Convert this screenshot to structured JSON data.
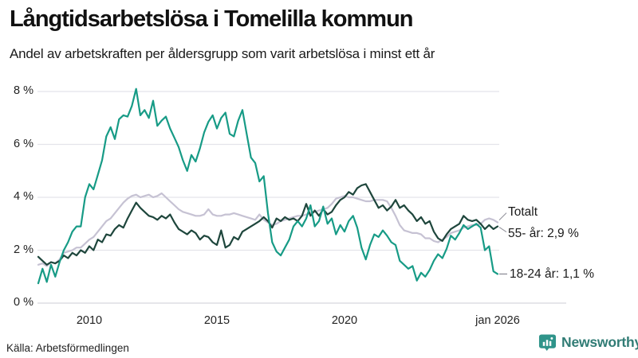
{
  "header": {
    "title": "Långtidsarbetslösa i Tomelilla kommun",
    "subtitle": "Andel av arbetskraften per åldersgrupp som varit arbetslösa i minst ett år"
  },
  "footer": {
    "source": "Källa: Arbetsförmedlingen",
    "brand": "Newsworthy",
    "brand_color": "#317c75",
    "brand_icon": "bar-chart-speech-bubble-icon",
    "brand_icon_color": "#2f948a"
  },
  "chart_data": {
    "type": "line",
    "title": "Långtidsarbetslösa i Tomelilla kommun",
    "subtitle": "Andel av arbetskraften per åldersgrupp som varit arbetslösa i minst ett år",
    "grid": "horizontal",
    "x_start_year": 2008.0,
    "x_step_years": 0.1666667,
    "x_axis": {
      "ticks": [
        {
          "label": "2010",
          "year": 2010
        },
        {
          "label": "2015",
          "year": 2015
        },
        {
          "label": "2020",
          "year": 2020
        },
        {
          "label": "jan 2026",
          "year": 2026
        }
      ]
    },
    "y_axis": {
      "unit": "%",
      "min": 0,
      "max": 8,
      "ticks": [
        {
          "label": "0 %",
          "value": 0
        },
        {
          "label": "2 %",
          "value": 2
        },
        {
          "label": "4 %",
          "value": 4
        },
        {
          "label": "6 %",
          "value": 6
        },
        {
          "label": "8 %",
          "value": 8
        }
      ]
    },
    "series": [
      {
        "name": "Totalt",
        "color": "#c6c2d3",
        "values": [
          1.45,
          1.5,
          1.4,
          1.55,
          1.5,
          1.65,
          1.9,
          1.95,
          2.0,
          2.1,
          2.1,
          2.25,
          2.4,
          2.5,
          2.7,
          2.9,
          3.1,
          3.2,
          3.4,
          3.6,
          3.8,
          3.95,
          4.05,
          4.1,
          4.0,
          4.05,
          4.1,
          4.0,
          4.05,
          4.15,
          4.0,
          3.85,
          3.7,
          3.55,
          3.45,
          3.4,
          3.35,
          3.3,
          3.3,
          3.35,
          3.55,
          3.35,
          3.3,
          3.3,
          3.35,
          3.35,
          3.4,
          3.35,
          3.3,
          3.25,
          3.2,
          3.15,
          3.35,
          3.15,
          3.05,
          2.95,
          3.0,
          3.1,
          3.15,
          3.2,
          3.25,
          3.3,
          3.3,
          3.35,
          3.4,
          3.45,
          3.5,
          3.55,
          3.6,
          3.75,
          3.95,
          4.0,
          4.05,
          4.0,
          4.0,
          3.95,
          3.9,
          3.85,
          3.85,
          3.9,
          3.9,
          3.9,
          3.85,
          3.6,
          3.3,
          2.95,
          2.75,
          2.7,
          2.65,
          2.65,
          2.6,
          2.45,
          2.45,
          2.35,
          2.3,
          2.4,
          2.5,
          2.65,
          2.7,
          2.75,
          2.85,
          2.9,
          2.95,
          2.95,
          3.0,
          3.15,
          3.2,
          3.15,
          3.05
        ]
      },
      {
        "name": "55- år",
        "color": "#1e463c",
        "values": [
          1.75,
          1.6,
          1.45,
          1.55,
          1.5,
          1.6,
          1.8,
          1.7,
          1.9,
          1.8,
          2.0,
          1.9,
          2.15,
          2.0,
          2.4,
          2.3,
          2.6,
          2.55,
          2.8,
          2.95,
          2.85,
          3.2,
          3.5,
          3.8,
          3.6,
          3.45,
          3.3,
          3.25,
          3.15,
          3.3,
          3.2,
          3.35,
          3.05,
          2.8,
          2.7,
          2.6,
          2.75,
          2.65,
          2.4,
          2.55,
          2.5,
          2.3,
          2.2,
          2.75,
          2.1,
          2.2,
          2.5,
          2.4,
          2.7,
          2.8,
          2.9,
          3.0,
          3.1,
          3.25,
          3.1,
          2.85,
          3.2,
          3.1,
          3.25,
          3.15,
          3.2,
          3.1,
          3.3,
          3.75,
          3.3,
          3.5,
          3.3,
          3.55,
          3.35,
          3.45,
          3.7,
          3.9,
          4.0,
          4.2,
          4.1,
          4.35,
          4.45,
          4.5,
          4.2,
          3.9,
          3.6,
          3.7,
          3.5,
          3.65,
          3.9,
          3.6,
          3.7,
          3.5,
          3.35,
          3.1,
          3.25,
          3.0,
          3.1,
          2.7,
          2.45,
          2.35,
          2.6,
          2.8,
          2.9,
          3.0,
          3.3,
          3.15,
          3.1,
          3.15,
          3.0,
          2.8,
          2.95,
          2.8,
          2.9
        ]
      },
      {
        "name": "18-24 år",
        "color": "#179b86",
        "values": [
          0.75,
          1.3,
          0.8,
          1.45,
          1.0,
          1.55,
          2.0,
          2.3,
          2.7,
          2.9,
          2.9,
          4.0,
          4.5,
          4.3,
          4.85,
          5.4,
          6.3,
          6.65,
          6.2,
          6.95,
          7.1,
          7.05,
          7.45,
          8.1,
          7.1,
          7.3,
          7.0,
          7.65,
          6.7,
          6.9,
          7.05,
          6.6,
          6.25,
          5.9,
          5.4,
          5.0,
          5.6,
          5.35,
          5.85,
          6.45,
          6.85,
          7.1,
          6.6,
          7.0,
          7.2,
          6.4,
          6.3,
          6.9,
          7.3,
          6.4,
          5.5,
          5.3,
          4.6,
          4.8,
          3.4,
          2.3,
          1.95,
          1.8,
          2.1,
          2.4,
          2.9,
          3.1,
          2.9,
          3.2,
          3.7,
          2.9,
          3.1,
          3.65,
          3.0,
          3.2,
          2.6,
          2.95,
          2.7,
          3.1,
          3.3,
          2.85,
          2.1,
          1.65,
          2.2,
          2.6,
          2.5,
          2.75,
          2.55,
          2.3,
          2.2,
          1.6,
          1.45,
          1.3,
          1.4,
          0.85,
          1.15,
          1.0,
          1.25,
          1.6,
          1.85,
          1.7,
          2.05,
          2.55,
          2.4,
          2.65,
          2.95,
          2.8,
          2.9,
          3.0,
          2.85,
          2.0,
          2.15,
          1.2,
          1.1
        ]
      }
    ],
    "annotations": [
      {
        "label": "Totalt",
        "series_index": 0,
        "connector": "up"
      },
      {
        "label": "55- år: 2,9 %",
        "series_index": 1,
        "connector": "down"
      },
      {
        "label": "18-24 år: 1,1 %",
        "series_index": 2,
        "connector": "dash"
      }
    ],
    "end_values": {
      "Totalt": 3.0,
      "55- år": 2.9,
      "18-24 år": 1.1
    },
    "colors": {
      "grid": "#e4e4ea",
      "axis": "#d7d7dd",
      "connector": "#8f8f98"
    }
  }
}
